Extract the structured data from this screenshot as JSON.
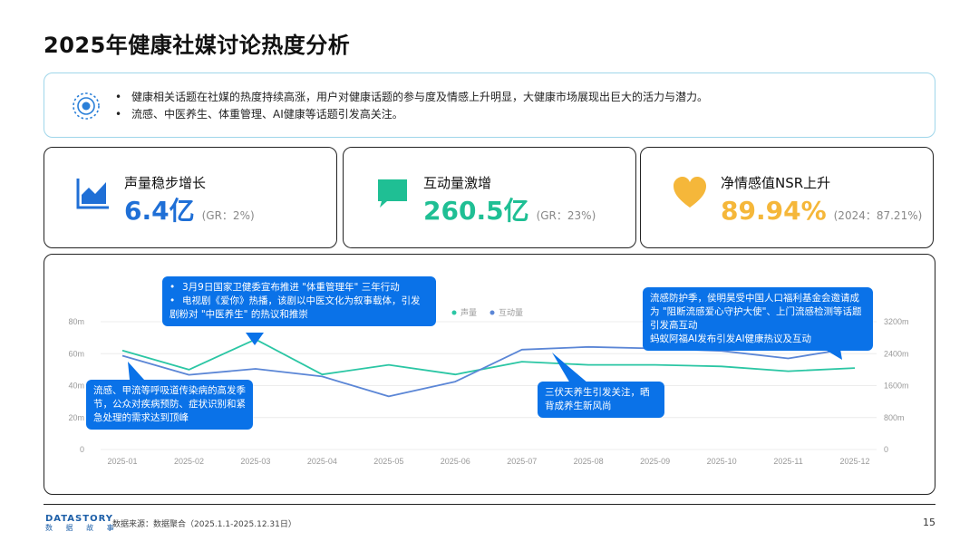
{
  "title": "2025年健康社媒讨论热度分析",
  "summary": {
    "icon": "radar-circle-icon",
    "bullets": [
      "健康相关话题在社媒的热度持续高涨，用户对健康话题的参与度及情感上升明显，大健康市场展现出巨大的活力与潜力。",
      "流感、中医养生、体重管理、AI健康等话题引发高关注。"
    ]
  },
  "cards": [
    {
      "title": "声量稳步增长",
      "value": "6.4亿",
      "note": "(GR：2%)",
      "color": "#1f6fd6",
      "icon": "area-chart-icon"
    },
    {
      "title": "互动量激增",
      "value": "260.5亿",
      "note": "(GR：23%)",
      "color": "#1fbf94",
      "icon": "chat-bubble-icon"
    },
    {
      "title": "净情感值NSR上升",
      "value": "89.94%",
      "note": "(2024：87.21%)",
      "color": "#f5b73a",
      "icon": "heart-icon"
    }
  ],
  "chart_data": {
    "type": "line",
    "categories": [
      "2025-01",
      "2025-02",
      "2025-03",
      "2025-04",
      "2025-05",
      "2025-06",
      "2025-07",
      "2025-08",
      "2025-09",
      "2025-10",
      "2025-11",
      "2025-12"
    ],
    "series": [
      {
        "name": "声量",
        "axis": "left",
        "color": "#2bc6a4",
        "values": [
          62,
          50,
          69,
          47,
          53,
          47,
          55,
          53,
          53,
          52,
          49,
          51
        ]
      },
      {
        "name": "互动量",
        "axis": "right",
        "color": "#5b86d6",
        "values": [
          2350,
          1870,
          2020,
          1830,
          1330,
          1700,
          2500,
          2570,
          2530,
          2470,
          2280,
          2550
        ]
      }
    ],
    "y_left": {
      "ticks": [
        "0",
        "20m",
        "40m",
        "60m",
        "80m"
      ],
      "range": [
        0,
        80
      ]
    },
    "y_right": {
      "ticks": [
        "0",
        "800m",
        "1600m",
        "2400m",
        "3200m"
      ],
      "range": [
        0,
        3200
      ]
    },
    "legend": "top-center",
    "grid": true
  },
  "callouts": [
    {
      "lines": [
        "3月9日国家卫健委宣布推进 \"体重管理年\" 三年行动",
        "电视剧《爱你》热播，该剧以中医文化为叙事载体，引发剧粉对 \"中医养生\" 的热议和推崇"
      ]
    },
    {
      "text": "流感、甲流等呼吸道传染病的高发季节，公众对疾病预防、症状识别和紧急处理的需求达到顶峰"
    },
    {
      "text": "三伏天养生引发关注，晒背成养生新风尚"
    },
    {
      "text": "流感防护季，侯明昊受中国人口福利基金会邀请成为 \"阻断流感爱心守护大使\"、上门流感检测等话题引发高互动\n蚂蚁阿福AI发布引发AI健康热议及互动"
    }
  ],
  "footer": {
    "logo": "DATASTORY",
    "logo_sub": "数 据 故 事",
    "source": "数据来源：数据聚合（2025.1.1-2025.12.31日）",
    "page": "15"
  }
}
